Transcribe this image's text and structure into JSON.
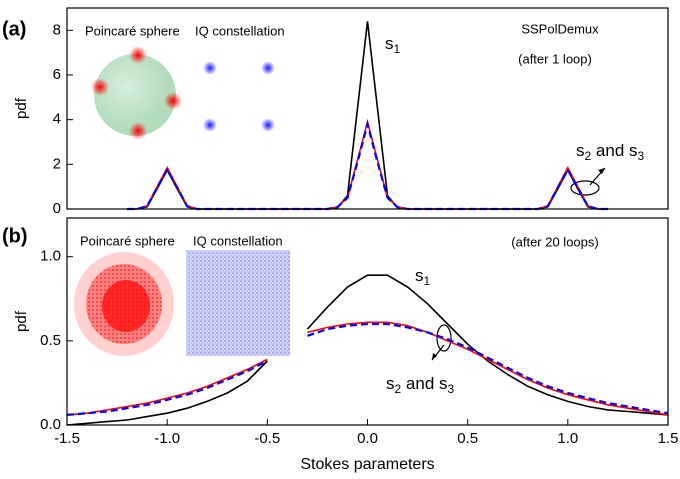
{
  "chart_data": [
    {
      "type": "line",
      "panel_label": "(a)",
      "notes": [
        "SSPolDemux",
        "(after 1 loop)"
      ],
      "inset_labels": [
        "Poincaré sphere",
        "IQ constellation"
      ],
      "y_label": "pdf",
      "annotations": [
        {
          "parts": [
            "s",
            "1"
          ]
        },
        {
          "parts": [
            "s",
            "2",
            " and s",
            "3"
          ]
        }
      ],
      "x": [
        -1.2,
        -1.15,
        -1.1,
        -1.05,
        -1.0,
        -0.95,
        -0.9,
        -0.85,
        -0.8,
        -0.75,
        -0.7,
        -0.65,
        -0.6,
        -0.55,
        -0.5,
        -0.45,
        -0.4,
        -0.35,
        -0.3,
        -0.25,
        -0.2,
        -0.15,
        -0.1,
        -0.05,
        0,
        0.05,
        0.1,
        0.15,
        0.2,
        0.25,
        0.3,
        0.35,
        0.4,
        0.45,
        0.5,
        0.55,
        0.6,
        0.65,
        0.7,
        0.75,
        0.8,
        0.85,
        0.9,
        0.95,
        1.0,
        1.05,
        1.1,
        1.15,
        1.2
      ],
      "series": [
        {
          "color": "#000000",
          "dash": false,
          "values": [
            0,
            0,
            0.1,
            0.9,
            1.75,
            0.9,
            0.1,
            0,
            0,
            0,
            0,
            0,
            0,
            0,
            0,
            0,
            0,
            0,
            0,
            0,
            0,
            0.05,
            0.6,
            4.5,
            8.4,
            4.5,
            0.6,
            0.05,
            0,
            0,
            0,
            0,
            0,
            0,
            0,
            0,
            0,
            0,
            0,
            0,
            0,
            0,
            0.1,
            0.9,
            1.75,
            0.9,
            0.1,
            0,
            0
          ]
        },
        {
          "color": "#ff0000",
          "dash": false,
          "values": [
            0,
            0,
            0.15,
            1.0,
            1.85,
            1.0,
            0.15,
            0,
            0,
            0,
            0,
            0,
            0,
            0,
            0,
            0,
            0,
            0,
            0,
            0,
            0,
            0.1,
            0.5,
            2.2,
            3.9,
            2.2,
            0.5,
            0.1,
            0,
            0,
            0,
            0,
            0,
            0,
            0,
            0,
            0,
            0,
            0,
            0,
            0,
            0,
            0.15,
            1.0,
            1.85,
            1.0,
            0.15,
            0,
            0
          ]
        },
        {
          "color": "#0000ff",
          "dash": true,
          "values": [
            0,
            0,
            0.12,
            0.95,
            1.75,
            0.95,
            0.12,
            0,
            0,
            0,
            0,
            0,
            0,
            0,
            0,
            0,
            0,
            0,
            0,
            0,
            0,
            0.08,
            0.5,
            2.1,
            3.8,
            2.1,
            0.5,
            0.08,
            0,
            0,
            0,
            0,
            0,
            0,
            0,
            0,
            0,
            0,
            0,
            0,
            0,
            0,
            0.12,
            0.95,
            1.75,
            0.95,
            0.12,
            0,
            0
          ]
        }
      ],
      "xlim": [
        -1.5,
        1.5
      ],
      "ylim": [
        0,
        9
      ],
      "yticks": [
        0,
        2,
        4,
        6,
        8
      ]
    },
    {
      "type": "line",
      "panel_label": "(b)",
      "notes": [
        "(after 20 loops)"
      ],
      "inset_labels": [
        "Poincaré sphere",
        "IQ constellation"
      ],
      "y_label": "pdf",
      "x_label": "Stokes parameters",
      "annotations": [
        {
          "parts": [
            "s",
            "1"
          ]
        },
        {
          "parts": [
            "s",
            "2",
            " and s",
            "3"
          ]
        }
      ],
      "x": [
        -1.5,
        -1.4,
        -1.3,
        -1.2,
        -1.1,
        -1.0,
        -0.9,
        -0.8,
        -0.7,
        -0.6,
        -0.5,
        -0.4,
        -0.3,
        -0.2,
        -0.1,
        0,
        0.1,
        0.2,
        0.3,
        0.4,
        0.5,
        0.6,
        0.7,
        0.8,
        0.9,
        1.0,
        1.1,
        1.2,
        1.3,
        1.4,
        1.5
      ],
      "series": [
        {
          "color": "#000000",
          "dash": false,
          "values": [
            0.0,
            0.01,
            0.02,
            0.03,
            0.05,
            0.07,
            0.1,
            0.14,
            0.19,
            0.26,
            0.38,
            null,
            0.57,
            0.7,
            0.82,
            0.89,
            0.89,
            0.82,
            0.72,
            0.6,
            0.48,
            0.38,
            0.3,
            0.23,
            0.18,
            0.14,
            0.11,
            0.09,
            0.08,
            0.07,
            0.06
          ]
        },
        {
          "color": "#ff0000",
          "dash": false,
          "values": [
            0.06,
            0.07,
            0.09,
            0.11,
            0.13,
            0.16,
            0.19,
            0.23,
            0.28,
            0.33,
            0.39,
            null,
            0.55,
            0.58,
            0.6,
            0.61,
            0.61,
            0.59,
            0.55,
            0.5,
            0.45,
            0.39,
            0.33,
            0.27,
            0.22,
            0.18,
            0.15,
            0.12,
            0.1,
            0.08,
            0.06
          ]
        },
        {
          "color": "#0000ff",
          "dash": true,
          "values": [
            0.06,
            0.07,
            0.08,
            0.1,
            0.12,
            0.15,
            0.18,
            0.22,
            0.27,
            0.32,
            0.38,
            null,
            0.53,
            0.57,
            0.59,
            0.6,
            0.6,
            0.58,
            0.55,
            0.51,
            0.46,
            0.4,
            0.34,
            0.28,
            0.23,
            0.19,
            0.16,
            0.13,
            0.11,
            0.09,
            0.07
          ]
        }
      ],
      "xlim": [
        -1.5,
        1.5
      ],
      "ylim": [
        0,
        1.23
      ],
      "yticks": [
        {
          "value": 0,
          "label": "0.0"
        },
        0.5,
        {
          "value": 1,
          "label": "1.0"
        }
      ],
      "xticks": [
        -1.5,
        {
          "value": -1,
          "label": "-1.0"
        },
        -0.5,
        {
          "value": 0,
          "label": "0.0"
        },
        0.5,
        {
          "value": 1,
          "label": "1.0"
        },
        1.5
      ]
    }
  ]
}
